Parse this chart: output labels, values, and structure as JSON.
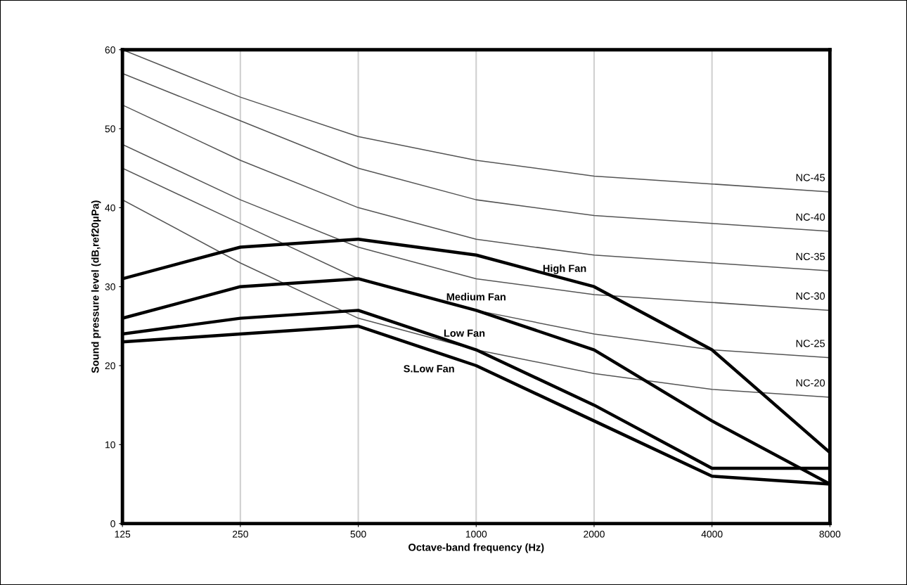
{
  "chart_data": {
    "type": "line",
    "xlabel": "Octave-band frequency (Hz)",
    "ylabel": "Sound pressure level (dB,ref20μPa)",
    "categories": [
      "125",
      "250",
      "500",
      "1000",
      "2000",
      "4000",
      "8000"
    ],
    "ylim": [
      0,
      60
    ],
    "yticks": [
      0,
      10,
      20,
      30,
      40,
      50,
      60
    ],
    "grid": "x",
    "legend": false,
    "marker": "none",
    "line_style": "solid",
    "series": [
      {
        "name": "NC-45",
        "color": "#555555",
        "values": [
          60,
          54,
          49,
          46,
          44,
          43,
          42
        ]
      },
      {
        "name": "NC-40",
        "color": "#555555",
        "values": [
          57,
          51,
          45,
          41,
          39,
          38,
          37
        ]
      },
      {
        "name": "NC-35",
        "color": "#555555",
        "values": [
          53,
          46,
          40,
          36,
          34,
          33,
          32
        ]
      },
      {
        "name": "NC-30",
        "color": "#555555",
        "values": [
          48,
          41,
          35,
          31,
          29,
          28,
          27
        ]
      },
      {
        "name": "NC-25",
        "color": "#555555",
        "values": [
          45,
          38,
          31,
          27,
          24,
          22,
          21
        ]
      },
      {
        "name": "NC-20",
        "color": "#555555",
        "values": [
          41,
          33,
          26,
          22,
          19,
          17,
          16
        ]
      },
      {
        "name": "High Fan",
        "color": "#000000",
        "values": [
          31,
          35,
          36,
          34,
          30,
          22,
          9
        ]
      },
      {
        "name": "Medium Fan",
        "color": "#000000",
        "values": [
          26,
          30,
          31,
          27,
          22,
          13,
          5
        ]
      },
      {
        "name": "Low Fan",
        "color": "#000000",
        "values": [
          24,
          26,
          27,
          22,
          15,
          7,
          7
        ]
      },
      {
        "name": "S.Low Fan",
        "color": "#000000",
        "values": [
          23,
          24,
          25,
          20,
          13,
          6,
          5
        ]
      }
    ]
  }
}
